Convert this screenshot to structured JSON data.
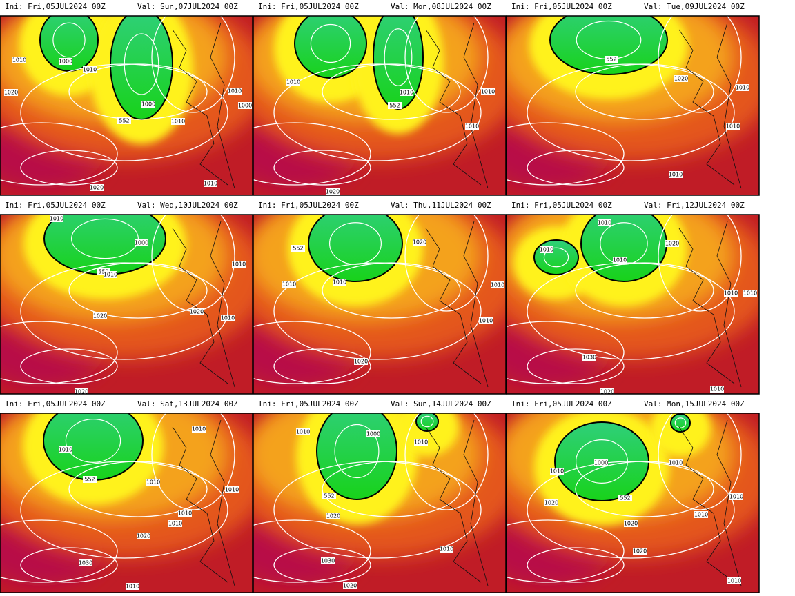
{
  "panels": [
    {
      "init": "Ini: Fri,05JUL2024 00Z",
      "valid": "Val: Sun,07JUL2024 00Z",
      "contour_labels": [
        "1010",
        "1000",
        "1010",
        "1020",
        "1010",
        "1000",
        "1000",
        "552",
        "1010",
        "1020",
        "1010"
      ]
    },
    {
      "init": "Ini: Fri,05JUL2024 00Z",
      "valid": "Val: Mon,08JUL2024 00Z",
      "contour_labels": [
        "1010",
        "1010",
        "552",
        "1010",
        "1010",
        "1020"
      ]
    },
    {
      "init": "Ini: Fri,05JUL2024 00Z",
      "valid": "Val: Tue,09JUL2024 00Z",
      "contour_labels": [
        "552",
        "1020",
        "1010",
        "1010",
        "1010"
      ]
    },
    {
      "init": "Ini: Fri,05JUL2024 00Z",
      "valid": "Val: Wed,10JUL2024 00Z",
      "contour_labels": [
        "1010",
        "1000",
        "552",
        "1010",
        "1010",
        "1020",
        "1020",
        "1010",
        "1020"
      ]
    },
    {
      "init": "Ini: Fri,05JUL2024 00Z",
      "valid": "Val: Thu,11JUL2024 00Z",
      "contour_labels": [
        "552",
        "1020",
        "1010",
        "1010",
        "1010",
        "1010",
        "1020"
      ]
    },
    {
      "init": "Ini: Fri,05JUL2024 00Z",
      "valid": "Val: Fri,12JUL2024 00Z",
      "contour_labels": [
        "1010",
        "1020",
        "1010",
        "1010",
        "1010",
        "1010",
        "1030",
        "1020",
        "1010"
      ]
    },
    {
      "init": "Ini: Fri,05JUL2024 00Z",
      "valid": "Val: Sat,13JUL2024 00Z",
      "contour_labels": [
        "1010",
        "1010",
        "552",
        "1010",
        "1010",
        "1010",
        "1010",
        "1020",
        "1030",
        "1010"
      ]
    },
    {
      "init": "Ini: Fri,05JUL2024 00Z",
      "valid": "Val: Sun,14JUL2024 00Z",
      "contour_labels": [
        "1010",
        "1000",
        "1010",
        "552",
        "1020",
        "1010",
        "1030",
        "1020"
      ]
    },
    {
      "init": "Ini: Fri,05JUL2024 00Z",
      "valid": "Val: Mon,15JUL2024 00Z",
      "contour_labels": [
        "1000",
        "1010",
        "1010",
        "552",
        "1020",
        "1010",
        "1010",
        "1020",
        "1020",
        "1010"
      ]
    }
  ]
}
